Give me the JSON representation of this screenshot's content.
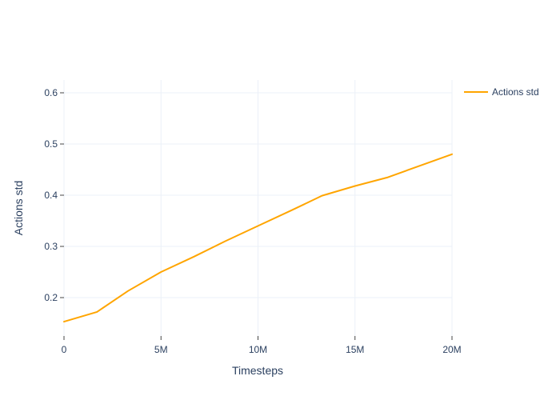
{
  "chart_data": {
    "type": "line",
    "title": "",
    "xlabel": "Timesteps",
    "ylabel": "Actions std",
    "xlim": [
      0,
      20000000
    ],
    "ylim": [
      0.125,
      0.625
    ],
    "x_ticks": [
      {
        "value": 0,
        "label": "0"
      },
      {
        "value": 5000000,
        "label": "5M"
      },
      {
        "value": 10000000,
        "label": "10M"
      },
      {
        "value": 15000000,
        "label": "15M"
      },
      {
        "value": 20000000,
        "label": "20M"
      }
    ],
    "y_ticks": [
      {
        "value": 0.2,
        "label": "0.2"
      },
      {
        "value": 0.3,
        "label": "0.3"
      },
      {
        "value": 0.4,
        "label": "0.4"
      },
      {
        "value": 0.5,
        "label": "0.5"
      },
      {
        "value": 0.6,
        "label": "0.6"
      }
    ],
    "grid": true,
    "legend_position": "top-right",
    "series": [
      {
        "name": "Actions std",
        "color": "#ffa500",
        "x": [
          0,
          1700000,
          3300000,
          5000000,
          6700000,
          8300000,
          10000000,
          11700000,
          13300000,
          15000000,
          16700000,
          18300000,
          20000000
        ],
        "y": [
          0.153,
          0.172,
          0.213,
          0.25,
          0.28,
          0.31,
          0.34,
          0.37,
          0.399,
          0.418,
          0.435,
          0.457,
          0.48
        ]
      }
    ]
  }
}
